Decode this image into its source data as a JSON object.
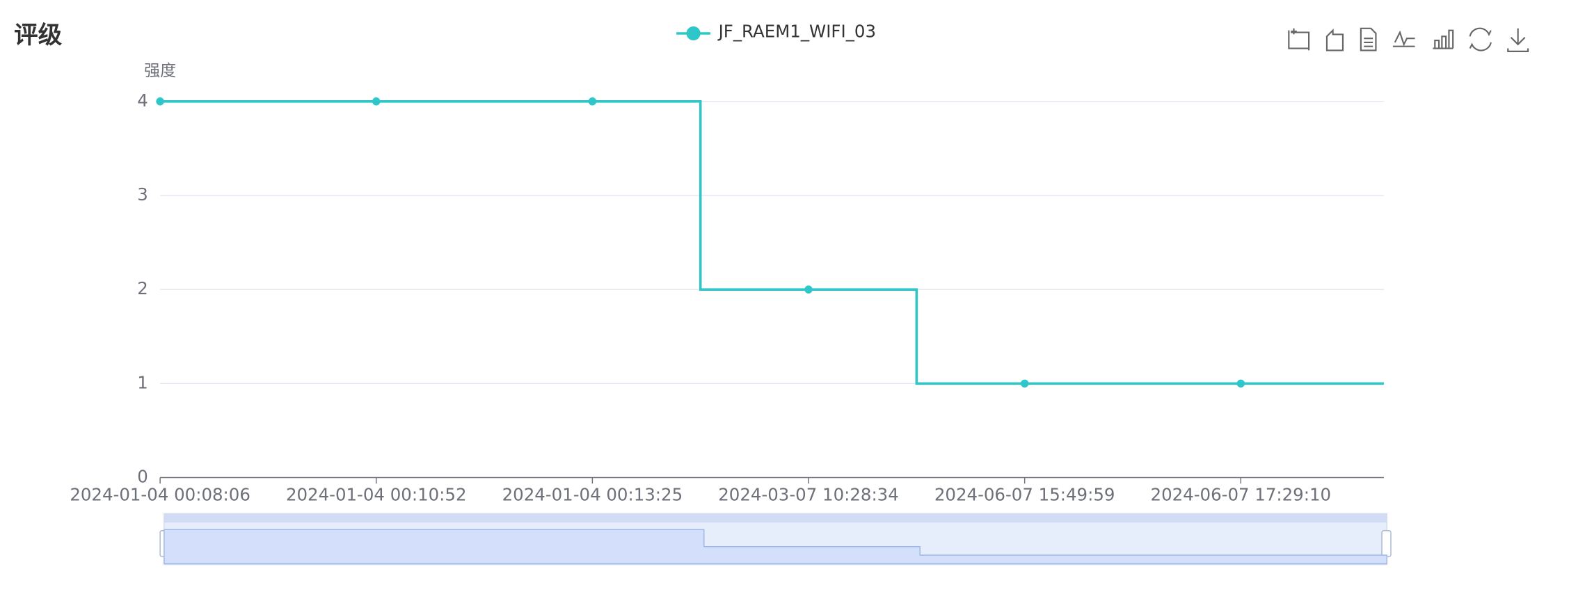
{
  "chart_data": {
    "type": "line",
    "title": "评级",
    "y_axis_label": "强度",
    "categories": [
      "2024-01-04 00:08:06",
      "2024-01-04 00:10:52",
      "2024-01-04 00:13:25",
      "2024-03-07 10:28:34",
      "2024-06-07 15:49:59",
      "2024-06-07 17:29:10"
    ],
    "series": [
      {
        "name": "JF_RAEM1_WIFI_03",
        "color": "#2ec7c9",
        "values": [
          4,
          4,
          4,
          2,
          1,
          1
        ]
      }
    ],
    "step": true,
    "ylim": [
      0,
      4
    ],
    "yticks": [
      0,
      1,
      2,
      3,
      4
    ],
    "grid": true
  }
}
